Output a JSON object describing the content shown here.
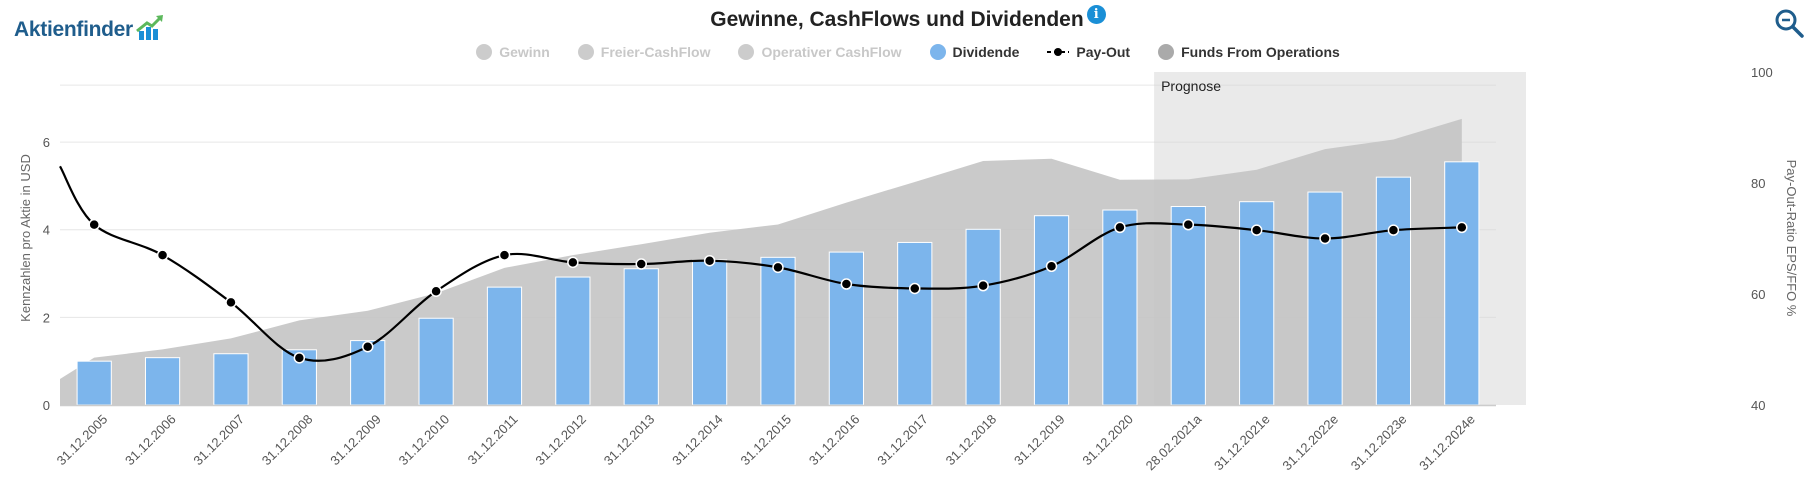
{
  "logo": {
    "text": "Aktienfinder"
  },
  "header": {
    "title": "Gewinne, CashFlows und Dividenden",
    "info_icon": "info-icon",
    "zoom_icon": "zoom-icon"
  },
  "legend": [
    {
      "label": "Gewinn",
      "active": false,
      "symbol": "dot",
      "color": "#cccccc"
    },
    {
      "label": "Freier-CashFlow",
      "active": false,
      "symbol": "dot",
      "color": "#cccccc"
    },
    {
      "label": "Operativer CashFlow",
      "active": false,
      "symbol": "dot",
      "color": "#cccccc"
    },
    {
      "label": "Dividende",
      "active": true,
      "symbol": "dot",
      "color": "#7cb5ec"
    },
    {
      "label": "Pay-Out",
      "active": true,
      "symbol": "line-dot",
      "color": "#000000"
    },
    {
      "label": "Funds From Operations",
      "active": true,
      "symbol": "dot",
      "color": "#aaaaaa"
    }
  ],
  "colors": {
    "dividend": "#7cb5ec",
    "ffo_area": "#c4c4c4",
    "payout": "#000000",
    "forecast_band": "#d6d6d6"
  },
  "chart_data": {
    "type": "bar",
    "title": "Gewinne, CashFlows und Dividenden",
    "forecast_label": "Prognose",
    "forecast_start_category": "28.02.2021a",
    "categories": [
      "31.12.2005",
      "31.12.2006",
      "31.12.2007",
      "31.12.2008",
      "31.12.2009",
      "31.12.2010",
      "31.12.2011",
      "31.12.2012",
      "31.12.2013",
      "31.12.2014",
      "31.12.2015",
      "31.12.2016",
      "31.12.2017",
      "31.12.2018",
      "31.12.2019",
      "31.12.2020",
      "28.02.2021a",
      "31.12.2021e",
      "31.12.2022e",
      "31.12.2023e",
      "31.12.2024e"
    ],
    "y_left": {
      "label": "Kennzahlen pro Aktie in USD",
      "ticks": [
        0,
        2,
        4,
        6
      ],
      "range": [
        0,
        7.6
      ]
    },
    "y_right": {
      "label": "Pay-Out-Ratio EPS/FFO %",
      "ticks": [
        40,
        60,
        80,
        100
      ],
      "range": [
        40,
        100
      ]
    },
    "series": [
      {
        "name": "Dividende",
        "type": "bar",
        "axis": "left",
        "values": [
          1.0,
          1.08,
          1.17,
          1.26,
          1.47,
          1.98,
          2.69,
          2.92,
          3.11,
          3.31,
          3.37,
          3.49,
          3.71,
          4.01,
          4.32,
          4.45,
          4.53,
          4.64,
          4.86,
          5.2,
          5.55
        ]
      },
      {
        "name": "Funds From Operations",
        "type": "area",
        "axis": "left",
        "values": [
          1.08,
          1.27,
          1.52,
          1.93,
          2.15,
          2.55,
          3.13,
          3.42,
          3.67,
          3.93,
          4.12,
          4.62,
          5.09,
          5.57,
          5.62,
          5.14,
          5.15,
          5.37,
          5.84,
          6.06,
          6.53
        ]
      },
      {
        "name": "Pay-Out",
        "type": "line",
        "axis": "right",
        "values": [
          72.5,
          67.0,
          58.5,
          48.5,
          50.5,
          60.5,
          67.0,
          65.7,
          65.4,
          66.0,
          64.8,
          61.8,
          61.0,
          61.5,
          65.0,
          72.0,
          72.5,
          71.5,
          70.0,
          71.5,
          72.0
        ]
      }
    ]
  }
}
